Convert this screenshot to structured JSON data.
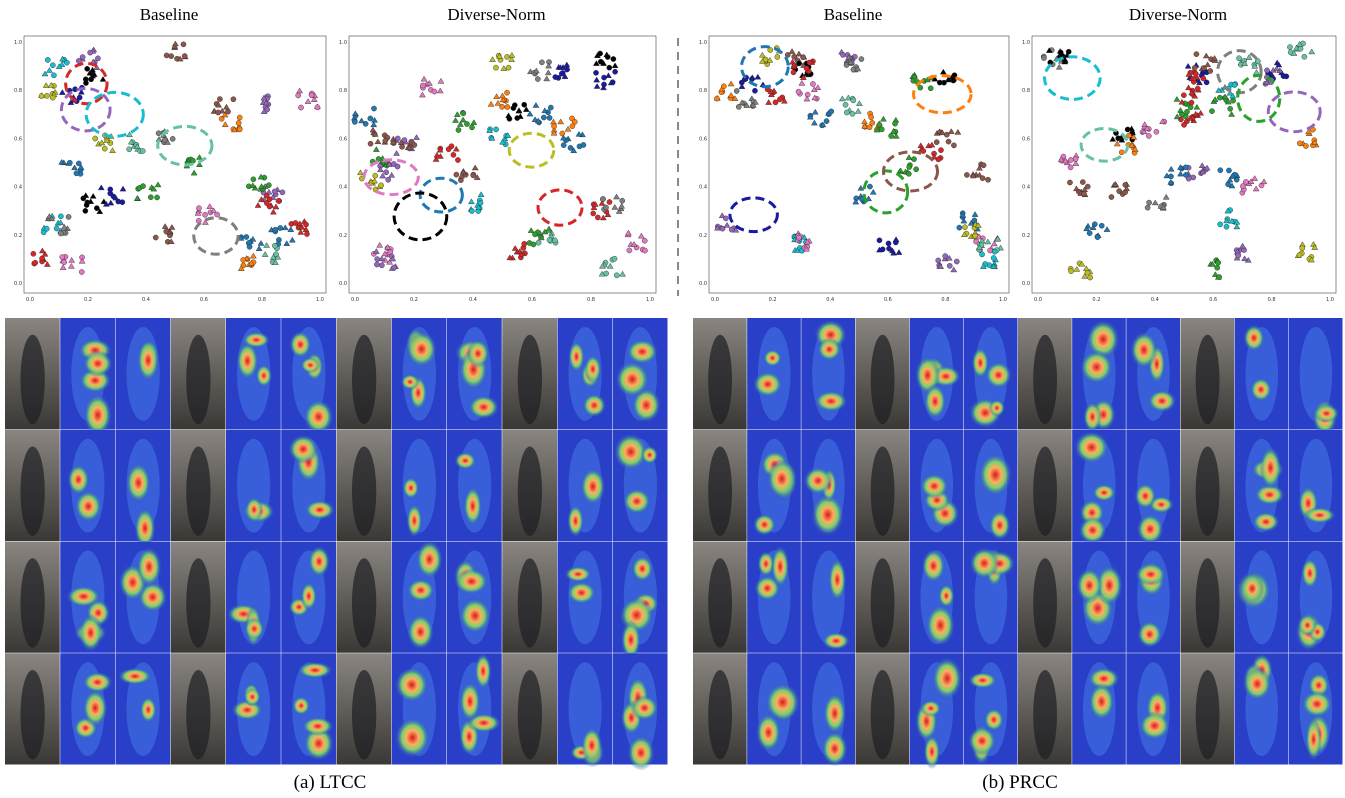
{
  "figures": [
    {
      "caption": "(a) LTCC",
      "panels": [
        {
          "title": "Baseline"
        },
        {
          "title": "Diverse-Norm"
        }
      ]
    },
    {
      "caption": "(b) PRCC",
      "panels": [
        {
          "title": "Baseline"
        },
        {
          "title": "Diverse-Norm"
        }
      ]
    }
  ],
  "axis_ticks": {
    "x": [
      "0.0",
      "0.2",
      "0.4",
      "0.6",
      "0.8",
      "1.0"
    ],
    "y": [
      "0.0",
      "0.2",
      "0.4",
      "0.6",
      "0.8",
      "1.0"
    ]
  }
}
